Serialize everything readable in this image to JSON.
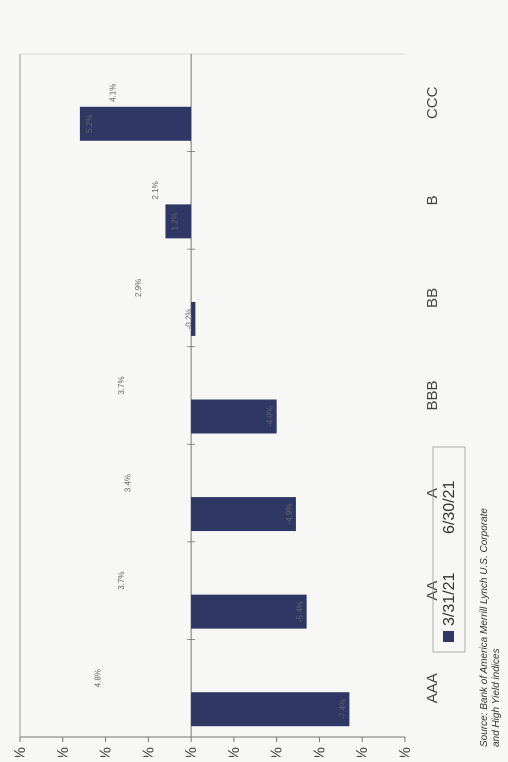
{
  "chart_data": {
    "type": "bar",
    "orientation": "horizontal-bars (page rotated 90°)",
    "categories": [
      "AAA",
      "AA",
      "A",
      "BBB",
      "BB",
      "B",
      "CCC"
    ],
    "series": [
      {
        "name": "3/31/21",
        "values": [
          -7.4,
          -5.4,
          -4.9,
          -4.0,
          -0.2,
          1.2,
          5.2
        ],
        "labels": [
          "-7.4%",
          "-5.4%",
          "-4.9%",
          "-4.0%",
          "-0.2%",
          "1.2%",
          "5.2%"
        ]
      },
      {
        "name": "6/30/21",
        "values": [
          4.8,
          3.7,
          3.4,
          3.7,
          2.9,
          2.1,
          4.1
        ],
        "labels": [
          "4.8%",
          "3.7%",
          "3.4%",
          "3.7%",
          "2.9%",
          "2.1%",
          "4.1%"
        ]
      }
    ],
    "axis_ticks": [
      "-10%",
      "-8%",
      "-6%",
      "-4%",
      "-2%",
      "0%",
      "2%",
      "4%",
      "6%",
      "8%"
    ],
    "xlim": [
      -10,
      8
    ],
    "grid": false,
    "legend_position": "bottom",
    "source": "Source: Bank of America Merrill Lynch U.S. Corporate and High Yield indices",
    "colors": {
      "series1": "#2f3765",
      "axis": "#777777"
    }
  }
}
